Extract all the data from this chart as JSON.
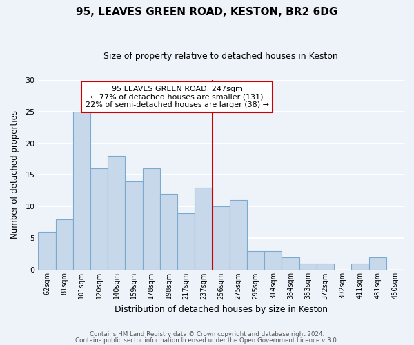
{
  "title": "95, LEAVES GREEN ROAD, KESTON, BR2 6DG",
  "subtitle": "Size of property relative to detached houses in Keston",
  "xlabel": "Distribution of detached houses by size in Keston",
  "ylabel": "Number of detached properties",
  "bar_labels": [
    "62sqm",
    "81sqm",
    "101sqm",
    "120sqm",
    "140sqm",
    "159sqm",
    "178sqm",
    "198sqm",
    "217sqm",
    "237sqm",
    "256sqm",
    "275sqm",
    "295sqm",
    "314sqm",
    "334sqm",
    "353sqm",
    "372sqm",
    "392sqm",
    "411sqm",
    "431sqm",
    "450sqm"
  ],
  "bar_values": [
    6,
    8,
    25,
    16,
    18,
    14,
    16,
    12,
    9,
    13,
    10,
    11,
    3,
    3,
    2,
    1,
    1,
    0,
    1,
    2,
    0
  ],
  "bar_color": "#c8d8eb",
  "bar_edge_color": "#7aaad0",
  "highlight_bar_index": 9,
  "vline_position": 9.5,
  "vline_color": "#cc0000",
  "annotation_title": "95 LEAVES GREEN ROAD: 247sqm",
  "annotation_line1": "← 77% of detached houses are smaller (131)",
  "annotation_line2": "22% of semi-detached houses are larger (38) →",
  "annotation_box_color": "#ffffff",
  "annotation_box_edge_color": "#cc0000",
  "ylim": [
    0,
    30
  ],
  "yticks": [
    0,
    5,
    10,
    15,
    20,
    25,
    30
  ],
  "footer1": "Contains HM Land Registry data © Crown copyright and database right 2024.",
  "footer2": "Contains public sector information licensed under the Open Government Licence v 3.0.",
  "background_color": "#eef3f9",
  "grid_color": "#ffffff"
}
